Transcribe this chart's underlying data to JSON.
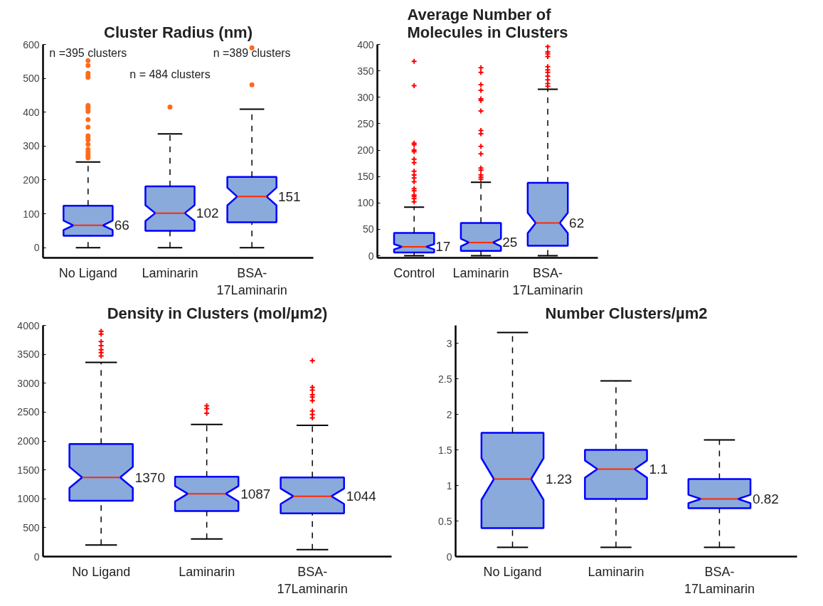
{
  "chart_data": [
    {
      "type": "box",
      "title": "Cluster Radius (nm)",
      "categories": [
        "No Ligand",
        "Laminarin",
        "BSA-\n17Laminarin"
      ],
      "ylim": [
        -30,
        600
      ],
      "yticks": [
        0,
        100,
        200,
        300,
        400,
        500,
        600
      ],
      "series": [
        {
          "color": "#8aaadb",
          "marker": "circle",
          "boxes": [
            {
              "low": 0,
              "q1": 35,
              "median": 66,
              "q3": 124,
              "high": 253,
              "outliers": [
                552,
                538,
                515,
                508,
                503,
                420,
                415,
                410,
                402,
                378,
                356,
                330,
                325,
                318,
                305,
                290,
                283,
                275,
                270,
                265
              ]
            },
            {
              "low": 0,
              "q1": 50,
              "median": 102,
              "q3": 181,
              "high": 336,
              "outliers": [
                415
              ]
            },
            {
              "low": 0,
              "q1": 75,
              "median": 151,
              "q3": 209,
              "high": 409,
              "outliers": [
                590,
                481
              ]
            }
          ]
        }
      ],
      "annotations": [
        "n =395 clusters",
        "n = 484 clusters",
        "n =389 clusters",
        "66",
        "102",
        "151"
      ]
    },
    {
      "type": "box",
      "title": "Average Number of\nMolecules in Clusters",
      "categories": [
        "Control",
        "Laminarin",
        "BSA-\n17Laminarin"
      ],
      "ylim": [
        -4,
        400
      ],
      "yticks": [
        0,
        50,
        100,
        150,
        200,
        250,
        300,
        350,
        400
      ],
      "series": [
        {
          "color": "#8aaadb",
          "marker": "cross",
          "boxes": [
            {
              "low": 0,
              "q1": 6,
              "median": 17,
              "q3": 43,
              "high": 92,
              "outliers": [
                368,
                322,
                213,
                210,
                200,
                197,
                183,
                176,
                160,
                153,
                147,
                140,
                127,
                123,
                115,
                112,
                108,
                102
              ]
            },
            {
              "low": 0,
              "q1": 9,
              "median": 25,
              "q3": 62,
              "high": 139,
              "outliers": [
                356,
                347,
                324,
                313,
                297,
                294,
                274,
                237,
                231,
                207,
                193,
                166,
                162,
                153,
                149,
                145
              ]
            },
            {
              "low": 0,
              "q1": 19,
              "median": 62,
              "q3": 138,
              "high": 315,
              "outliers": [
                396,
                386,
                382,
                377,
                358,
                352,
                347,
                340,
                333,
                326,
                321
              ]
            }
          ]
        }
      ],
      "annotations": [
        "17",
        "25",
        "62"
      ]
    },
    {
      "type": "box",
      "title": "Density in Clusters (mol/µm2)",
      "categories": [
        "No Ligand",
        "Laminarin",
        "BSA-\n17Laminarin"
      ],
      "ylim": [
        0,
        4000
      ],
      "yticks": [
        0,
        500,
        1000,
        1500,
        2000,
        2500,
        3000,
        3500,
        4000
      ],
      "series": [
        {
          "color": "#8aaadb",
          "marker": "cross",
          "boxes": [
            {
              "low": 200,
              "q1": 965,
              "median": 1370,
              "q3": 1948,
              "high": 3360,
              "outliers": [
                3900,
                3850,
                3720,
                3650,
                3580,
                3530,
                3470
              ]
            },
            {
              "low": 305,
              "q1": 789,
              "median": 1087,
              "q3": 1383,
              "high": 2287,
              "outliers": [
                2610,
                2560,
                2480
              ]
            },
            {
              "low": 120,
              "q1": 749,
              "median": 1044,
              "q3": 1370,
              "high": 2272,
              "outliers": [
                3390,
                2930,
                2880,
                2800,
                2760,
                2700,
                2520,
                2460,
                2400
              ]
            }
          ]
        }
      ],
      "annotations": [
        "1370",
        "1087",
        "1044"
      ]
    },
    {
      "type": "box",
      "title": "Number Clusters/µm2",
      "categories": [
        "No Ligand",
        "Laminarin",
        "BSA-\n17Laminarin"
      ],
      "ylim": [
        0,
        3.25
      ],
      "yticks": [
        0,
        0.5,
        1,
        1.5,
        2,
        2.5,
        3
      ],
      "series": [
        {
          "color": "#8aaadb",
          "boxes": [
            {
              "low": 0.13,
              "q1": 0.4,
              "median": 1.09,
              "q3": 1.74,
              "high": 3.15
            },
            {
              "low": 0.13,
              "q1": 0.81,
              "median": 1.23,
              "q3": 1.5,
              "high": 2.47
            },
            {
              "low": 0.13,
              "q1": 0.68,
              "median": 0.81,
              "q3": 1.09,
              "high": 1.64
            }
          ]
        }
      ],
      "annotations": [
        "1.23",
        "1.1",
        "0.82"
      ]
    }
  ]
}
